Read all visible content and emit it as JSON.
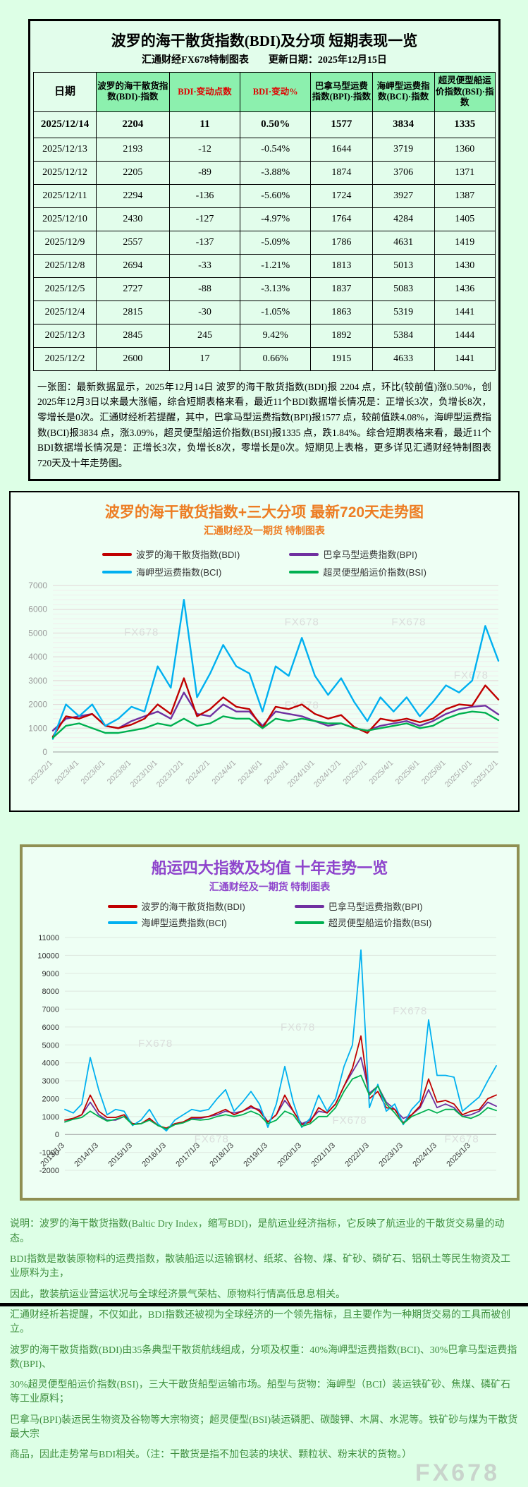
{
  "panel1": {
    "title": "波罗的海干散货指数(BDI)及分项 短期表现一览",
    "subtitle": "汇通财经FX678特制图表　　更新日期：2025年12月15日",
    "table": {
      "headers": [
        "日期",
        "波罗的海干散货指数(BDI)·指数",
        "BDI·变动点数",
        "BDI·变动%",
        "巴拿马型运费指数(BPI)·指数",
        "海岬型运费指数(BCI)·指数",
        "超灵便型船运价指数(BSI)·指数"
      ],
      "header_red_cols": [
        2,
        3
      ],
      "rows": [
        [
          "2025/12/14",
          "2204",
          "11",
          "0.50%",
          "1577",
          "3834",
          "1335"
        ],
        [
          "2025/12/13",
          "2193",
          "-12",
          "-0.54%",
          "1644",
          "3719",
          "1360"
        ],
        [
          "2025/12/12",
          "2205",
          "-89",
          "-3.88%",
          "1874",
          "3706",
          "1371"
        ],
        [
          "2025/12/11",
          "2294",
          "-136",
          "-5.60%",
          "1724",
          "3927",
          "1387"
        ],
        [
          "2025/12/10",
          "2430",
          "-127",
          "-4.97%",
          "1764",
          "4284",
          "1405"
        ],
        [
          "2025/12/9",
          "2557",
          "-137",
          "-5.09%",
          "1786",
          "4631",
          "1419"
        ],
        [
          "2025/12/8",
          "2694",
          "-33",
          "-1.21%",
          "1813",
          "5013",
          "1430"
        ],
        [
          "2025/12/5",
          "2727",
          "-88",
          "-3.13%",
          "1837",
          "5083",
          "1436"
        ],
        [
          "2025/12/4",
          "2815",
          "-30",
          "-1.05%",
          "1863",
          "5319",
          "1441"
        ],
        [
          "2025/12/3",
          "2845",
          "245",
          "9.42%",
          "1892",
          "5384",
          "1444"
        ],
        [
          "2025/12/2",
          "2600",
          "17",
          "0.66%",
          "1915",
          "4633",
          "1441"
        ]
      ]
    },
    "summary": "一张图：最新数据显示，2025年12月14日 波罗的海干散货指数(BDI)报 2204 点，环比(较前值)涨0.50%，创2025年12月3日以来最大涨幅，综合短期表格来看，最近11个BDI数据增长情况是：正增长3次，负增长8次，零增长是0次。汇通财经析若提醒，其中，巴拿马型运费指数(BPI)报1577 点，较前值跌4.08%，海岬型运费指数(BCI)报3834 点，涨3.09%，超灵便型船运价指数(BSI)报1335 点，跌1.84%。综合短期表格来看，最近11个BDI数据增长情况是：正增长3次，负增长8次，零增长是0次。短期见上表格，更多详见汇通财经特制图表720天及十年走势图。"
  },
  "chart_data": [
    {
      "type": "line",
      "title": "波罗的海干散货指数+三大分项  最新720天走势图",
      "subtitle": "汇通财经及一期货 特制图表",
      "watermark": "FX678",
      "ylim": [
        0,
        7000
      ],
      "y_step": 1000,
      "x_tick_every": 2,
      "grid": true,
      "legend_position": "top",
      "categories": [
        "2023/2/1",
        "2023/3/1",
        "2023/4/1",
        "2023/5/1",
        "2023/6/1",
        "2023/7/1",
        "2023/8/1",
        "2023/9/1",
        "2023/10/1",
        "2023/11/1",
        "2023/12/1",
        "2024/1/1",
        "2024/2/1",
        "2024/3/1",
        "2024/4/1",
        "2024/5/1",
        "2024/6/1",
        "2024/7/1",
        "2024/8/1",
        "2024/9/1",
        "2024/10/1",
        "2024/11/1",
        "2024/12/1",
        "2025/1/1",
        "2025/2/1",
        "2025/3/1",
        "2025/4/1",
        "2025/5/1",
        "2025/6/1",
        "2025/7/1",
        "2025/8/1",
        "2025/9/1",
        "2025/10/1",
        "2025/11/1",
        "2025/12/1"
      ],
      "series": [
        {
          "name": "波罗的海干散货指数(BDI)",
          "color": "#c00000",
          "values": [
            650,
            1500,
            1400,
            1600,
            1100,
            1000,
            1150,
            1400,
            2000,
            1600,
            3100,
            1500,
            1800,
            2300,
            1900,
            1800,
            1000,
            1900,
            1800,
            2000,
            1600,
            1400,
            1550,
            1050,
            800,
            1400,
            1300,
            1400,
            1250,
            1400,
            1800,
            2000,
            1950,
            2800,
            2204
          ]
        },
        {
          "name": "巴拿马型运费指数(BPI)",
          "color": "#7030a0",
          "values": [
            900,
            1400,
            1500,
            1600,
            1100,
            1000,
            1300,
            1500,
            1700,
            1400,
            2500,
            1600,
            1500,
            2000,
            1700,
            1700,
            1100,
            1700,
            1600,
            1500,
            1300,
            1100,
            1200,
            1000,
            900,
            1100,
            1200,
            1300,
            1100,
            1300,
            1600,
            1800,
            1900,
            1950,
            1577
          ]
        },
        {
          "name": "海岬型运费指数(BCI)",
          "color": "#00b0f0",
          "values": [
            550,
            2000,
            1500,
            2000,
            1100,
            1400,
            1900,
            1700,
            3600,
            2700,
            6400,
            2300,
            3300,
            4500,
            3600,
            3300,
            1700,
            3600,
            3200,
            4800,
            3200,
            2400,
            3100,
            2100,
            1300,
            2300,
            1700,
            2300,
            1500,
            2100,
            2800,
            2500,
            3000,
            5300,
            3834
          ]
        },
        {
          "name": "超灵便型船运价指数(BSI)",
          "color": "#00b050",
          "values": [
            600,
            1100,
            1200,
            1000,
            800,
            800,
            900,
            1000,
            1200,
            1100,
            1400,
            1100,
            1200,
            1500,
            1400,
            1400,
            1000,
            1400,
            1300,
            1400,
            1300,
            1200,
            1200,
            1000,
            900,
            1000,
            1100,
            1200,
            1000,
            1100,
            1400,
            1600,
            1700,
            1650,
            1335
          ]
        }
      ]
    },
    {
      "type": "line",
      "title": "船运四大指数及均值 十年走势一览",
      "subtitle": "汇通财经及一期货 特制图表",
      "watermark": "FX678",
      "ylim": [
        -2000,
        11000
      ],
      "y_step": 1000,
      "x_tick_every": 4,
      "grid": true,
      "legend_position": "top",
      "categories": [
        "2013/1/3",
        "2013/4",
        "2013/7",
        "2013/10",
        "2014/1/3",
        "2014/4",
        "2014/7",
        "2014/10",
        "2015/1/3",
        "2015/4",
        "2015/7",
        "2015/10",
        "2016/1/3",
        "2016/4",
        "2016/7",
        "2016/10",
        "2017/1/3",
        "2017/4",
        "2017/7",
        "2017/10",
        "2018/1/3",
        "2018/4",
        "2018/7",
        "2018/10",
        "2019/1/3",
        "2019/4",
        "2019/7",
        "2019/10",
        "2020/1/3",
        "2020/4",
        "2020/7",
        "2020/10",
        "2021/1/3",
        "2021/4",
        "2021/7",
        "2021/10",
        "2022/1/3",
        "2022/4",
        "2022/7",
        "2022/10",
        "2023/1/3",
        "2023/4",
        "2023/7",
        "2023/10",
        "2024/1/3",
        "2024/4",
        "2024/7",
        "2024/10",
        "2025/1/3",
        "2025/4",
        "2025/7",
        "2025/10"
      ],
      "series": [
        {
          "name": "波罗的海干散货指数(BDI)",
          "color": "#c00000",
          "values": [
            800,
            900,
            1100,
            2200,
            1300,
            950,
            950,
            1100,
            600,
            600,
            900,
            500,
            350,
            600,
            700,
            950,
            950,
            1000,
            1200,
            1400,
            1100,
            1300,
            1600,
            1300,
            700,
            1100,
            2200,
            1300,
            550,
            700,
            1500,
            1200,
            1700,
            2700,
            3700,
            5500,
            2000,
            2400,
            1500,
            1400,
            650,
            1100,
            1600,
            3100,
            1800,
            1900,
            1700,
            1100,
            1300,
            1400,
            2000,
            2204
          ]
        },
        {
          "name": "巴拿马型运费指数(BPI)",
          "color": "#7030a0",
          "values": [
            700,
            900,
            1100,
            1800,
            1100,
            800,
            800,
            1000,
            600,
            600,
            900,
            500,
            300,
            600,
            700,
            900,
            900,
            1000,
            1100,
            1300,
            1200,
            1300,
            1500,
            1400,
            700,
            1100,
            1900,
            1300,
            600,
            800,
            1300,
            1200,
            1700,
            2700,
            3500,
            4300,
            2300,
            2700,
            1800,
            1400,
            900,
            1100,
            1500,
            2500,
            1500,
            1700,
            1500,
            1000,
            1100,
            1300,
            1800,
            1577
          ]
        },
        {
          "name": "海岬型运费指数(BCI)",
          "color": "#00b0f0",
          "values": [
            1400,
            1200,
            1700,
            4300,
            2500,
            1100,
            1400,
            1300,
            500,
            800,
            1400,
            600,
            200,
            800,
            1100,
            1400,
            1300,
            1400,
            2000,
            2500,
            1300,
            1800,
            2400,
            1700,
            400,
            1700,
            3800,
            1800,
            400,
            900,
            2200,
            1300,
            2000,
            3800,
            5000,
            10300,
            1500,
            2800,
            1300,
            1700,
            550,
            1400,
            1900,
            6400,
            3300,
            3300,
            3200,
            1300,
            1700,
            2100,
            3000,
            3834
          ]
        },
        {
          "name": "超灵便型船运价指数(BSI)",
          "color": "#00b050",
          "values": [
            700,
            850,
            950,
            1300,
            1000,
            750,
            850,
            1000,
            550,
            600,
            800,
            500,
            300,
            550,
            650,
            850,
            800,
            850,
            1000,
            1100,
            1000,
            1100,
            1300,
            1100,
            600,
            800,
            1300,
            1100,
            450,
            600,
            1000,
            1000,
            1500,
            2400,
            3100,
            3300,
            2200,
            2700,
            1700,
            1200,
            600,
            1000,
            1200,
            1400,
            1200,
            1400,
            1400,
            1000,
            900,
            1100,
            1500,
            1335
          ]
        }
      ]
    }
  ],
  "footer": {
    "lines": [
      "说明：波罗的海干散货指数(Baltic Dry Index，缩写BDI)，是航运业经济指标，它反映了航运业的干散货交易量的动态。",
      "BDI指数是散装原物料的运费指数，散装船运以运输钢材、纸浆、谷物、煤、矿砂、磷矿石、铝矾土等民生物资及工业原料为主，",
      "因此，散装航运业营运状况与全球经济景气荣枯、原物料行情高低息息相关。",
      "汇通财经析若提醒，不仅如此，BDI指数还被视为全球经济的一个领先指标，且主要作为一种期货交易的工具而被创立。",
      "波罗的海干散货指数(BDI)由35条典型干散货航线组成，分项及权重：40%海岬型运费指数(BCI)、30%巴拿马型运费指数(BPI)、",
      "30%超灵便型船运价指数(BSI)，三大干散货船型运输市场。船型与货物：海岬型（BCI）装运铁矿砂、焦煤、磷矿石等工业原料；",
      "巴拿马(BPI)装运民生物资及谷物等大宗物资；超灵便型(BSI)装运磷肥、碳酸钾、木屑、水泥等。铁矿砂与煤为干散货最大宗",
      "商品，因此走势常与BDI相关。（注：干散货是指不加包装的块状、颗粒状、粉末状的货物。）"
    ],
    "watermark": "FX678"
  }
}
